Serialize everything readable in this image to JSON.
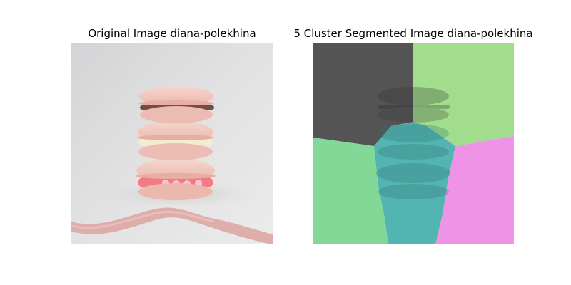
{
  "figure": {
    "left_panel": {
      "title": "Original Image diana-polekhina",
      "subject": "stack of three pink macarons with ribbon"
    },
    "right_panel": {
      "title": "5 Cluster Segmented Image diana-polekhina",
      "cluster_count": 5,
      "cluster_colors": [
        "#545454",
        "#a2dd8d",
        "#82d896",
        "#52b5b2",
        "#ee93e6"
      ]
    }
  },
  "colors": {
    "background": "#ffffff",
    "photo_background": "#dcdcdc",
    "macaron_pink": "#f0c4bd",
    "ribbon": "#dca3a0"
  }
}
